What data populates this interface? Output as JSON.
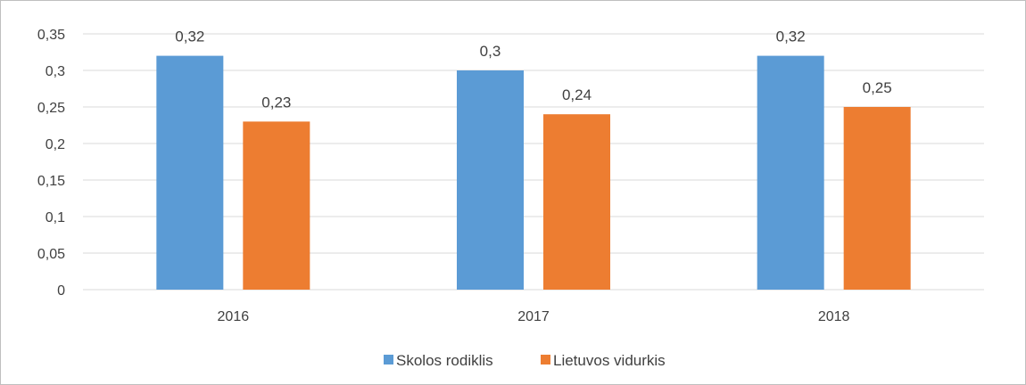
{
  "chart_data": {
    "type": "bar",
    "title": "",
    "xlabel": "",
    "ylabel": "",
    "categories": [
      "2016",
      "2017",
      "2018"
    ],
    "series": [
      {
        "name": "Skolos rodiklis",
        "values": [
          0.32,
          0.3,
          0.32
        ],
        "labels": [
          "0,32",
          "0,3",
          "0,32"
        ],
        "color": "#5b9bd5"
      },
      {
        "name": "Lietuvos vidurkis",
        "values": [
          0.23,
          0.24,
          0.25
        ],
        "labels": [
          "0,23",
          "0,24",
          "0,25"
        ],
        "color": "#ed7d31"
      }
    ],
    "ylim": [
      0,
      0.35
    ],
    "yticks": [
      0,
      0.05,
      0.1,
      0.15,
      0.2,
      0.25,
      0.3,
      0.35
    ],
    "ytick_labels": [
      "0",
      "0,05",
      "0,1",
      "0,15",
      "0,2",
      "0,25",
      "0,3",
      "0,35"
    ],
    "grid": true,
    "legend_position": "bottom"
  },
  "colors": {
    "grid": "#d9d9d9",
    "text": "#404040"
  }
}
